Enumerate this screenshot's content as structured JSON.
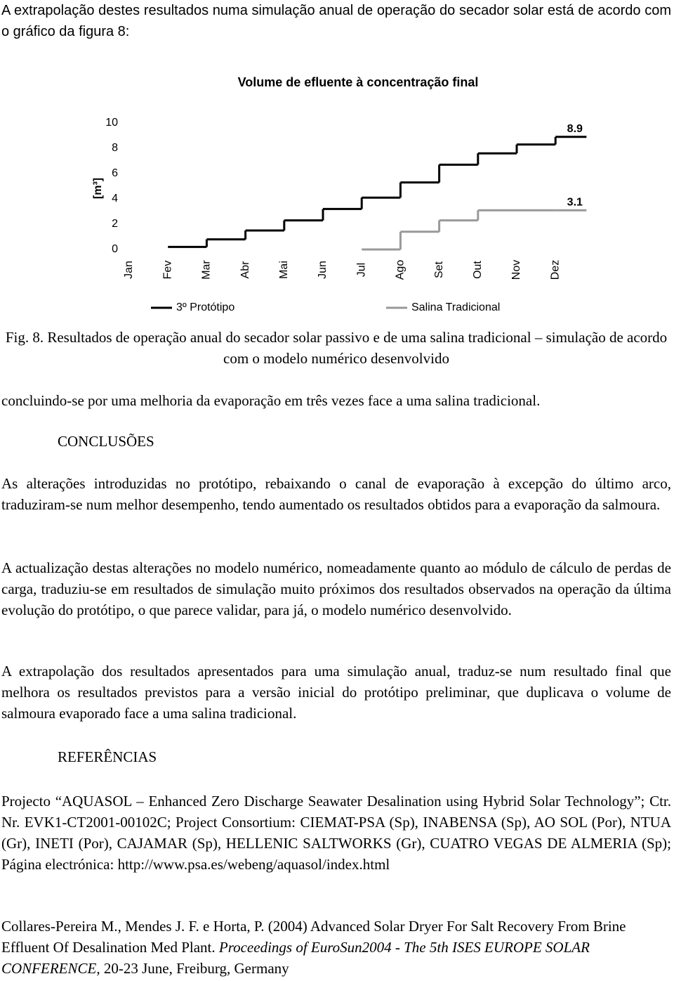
{
  "intro": "A extrapolação destes resultados numa simulação anual de operação do secador solar está de acordo com o gráfico da figura 8:",
  "chart_data": {
    "type": "step",
    "title": "Volume de efluente à concentração final",
    "y_label": "[m³]",
    "categories": [
      "Jan",
      "Fev",
      "Mar",
      "Abr",
      "Mai",
      "Jun",
      "Jul",
      "Ago",
      "Set",
      "Out",
      "Nov",
      "Dez"
    ],
    "series": [
      {
        "name": "3º Protótipo",
        "color": "#000000",
        "values": [
          null,
          0.2,
          0.8,
          1.5,
          2.3,
          3.2,
          4.1,
          5.3,
          6.7,
          7.6,
          8.3,
          8.9
        ],
        "value_labels": [
          null,
          null,
          null,
          null,
          null,
          null,
          null,
          null,
          null,
          null,
          null,
          "8.9"
        ]
      },
      {
        "name": "Salina Tradicional",
        "color": "#999999",
        "values": [
          null,
          null,
          null,
          null,
          null,
          null,
          0,
          1.4,
          2.3,
          3.1,
          3.1,
          3.1
        ],
        "value_labels": [
          null,
          null,
          null,
          null,
          null,
          null,
          null,
          null,
          null,
          null,
          null,
          "3.1"
        ]
      }
    ],
    "ylim": [
      0,
      10
    ],
    "yticks": [
      0,
      2,
      4,
      6,
      8,
      10
    ],
    "grid": false,
    "legend": "bottom"
  },
  "caption": "Fig. 8. Resultados de operação anual do secador solar passivo e de uma salina tradicional – simulação de acordo com o modelo numérico desenvolvido",
  "p1": "concluindo-se por uma melhoria da evaporação em três vezes face a uma salina tradicional.",
  "h1": "CONCLUSÕES",
  "p2": "As alterações introduzidas no protótipo, rebaixando o canal de evaporação à excepção do último arco, traduziram-se num melhor desempenho, tendo aumentado os resultados obtidos para a evaporação da salmoura.",
  "p3": "A actualização destas alterações no modelo numérico, nomeadamente quanto ao módulo de cálculo de perdas de carga, traduziu-se em resultados de simulação muito próximos dos resultados observados na operação da última evolução do protótipo, o que parece validar, para já, o modelo numérico desenvolvido.",
  "p4": "A extrapolação dos resultados apresentados para uma simulação anual, traduz-se num resultado final que melhora os resultados previstos para a versão inicial do protótipo preliminar, que duplicava o volume de salmoura evaporado face a uma salina tradicional.",
  "h2": "REFERÊNCIAS",
  "ref1": "Projecto “AQUASOL – Enhanced Zero Discharge Seawater Desalination using Hybrid Solar Technology”; Ctr. Nr. EVK1-CT2001-00102C; Project Consortium: CIEMAT-PSA (Sp), INABENSA (Sp), AO SOL (Por), NTUA (Gr), INETI (Por), CAJAMAR (Sp), HELLENIC SALTWORKS (Gr), CUATRO VEGAS DE ALMERIA (Sp); Página electrónica: http://www.psa.es/webeng/aquasol/index.html",
  "ref2": [
    "Collares-Pereira M., Mendes J. F. e Horta, P. (2004) Advanced Solar Dryer For Salt Recovery From Brine Effluent Of Desalination Med Plant. ",
    "Proceedings of EuroSun2004 - The 5th ISES EUROPE SOLAR CONFERENCE",
    ", 20-23 June, Freiburg, Germany"
  ]
}
